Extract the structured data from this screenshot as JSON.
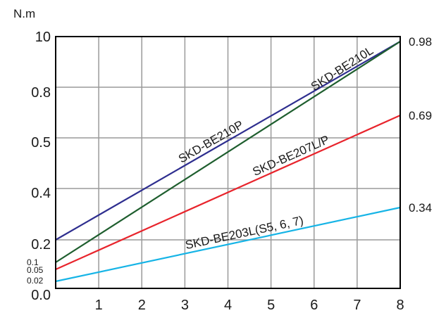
{
  "chart_data": {
    "type": "line",
    "title": "",
    "unit_label": "N.m",
    "xlabel": "",
    "ylabel": "",
    "x_ticks": [
      "1",
      "2",
      "3",
      "4",
      "5",
      "6",
      "7",
      "8"
    ],
    "xlim": [
      0,
      8
    ],
    "y_axis_scale": "nonlinear (printed tick labels at equally spaced gridlines)",
    "y_ticks_left": [
      "10",
      "0.8",
      "0.5",
      "0.4",
      "0.2",
      "0.0"
    ],
    "y_ticks_left_small": [
      "0.1",
      "0.05",
      "0.02"
    ],
    "y_ticks_right": [
      "0.98",
      "0.69",
      "0.34"
    ],
    "grid": true,
    "series": [
      {
        "name": "SKD-BE210P",
        "color": "#2e2e8f",
        "x": [
          0,
          8
        ],
        "y": [
          0.2,
          0.98
        ]
      },
      {
        "name": "SKD-BE210L",
        "color": "#1e5e2e",
        "x": [
          0,
          8
        ],
        "y": [
          0.1,
          0.98
        ]
      },
      {
        "name": "SKD-BE207L/P",
        "color": "#e8242c",
        "x": [
          0,
          8
        ],
        "y": [
          0.05,
          0.69
        ]
      },
      {
        "name": "SKD-BE203L(S5, 6, 7)",
        "color": "#16b4e6",
        "x": [
          0,
          8
        ],
        "y": [
          0.02,
          0.34
        ]
      }
    ]
  }
}
